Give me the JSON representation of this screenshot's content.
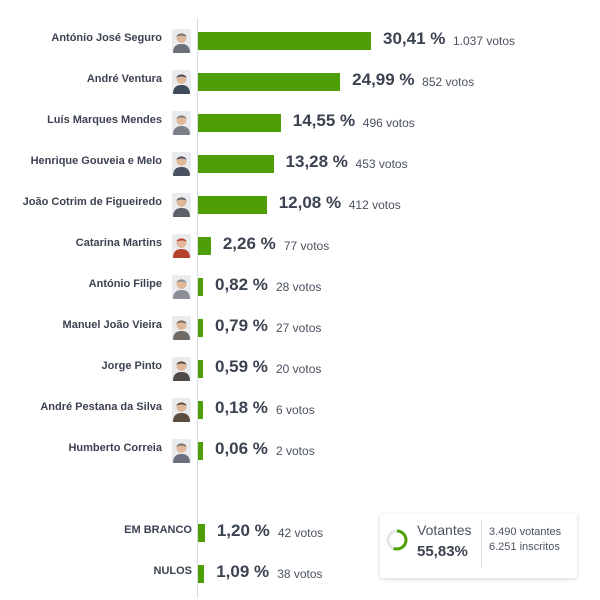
{
  "chart_data": {
    "type": "bar",
    "orientation": "horizontal",
    "xlim": [
      0,
      30.41
    ],
    "bar_color": "#4e9f06",
    "candidates": [
      {
        "name": "António José Seguro",
        "percent": 30.41,
        "percent_label": "30,41 %",
        "votes_label": "1.037 votos",
        "photo_color": "#6a6f78"
      },
      {
        "name": "André Ventura",
        "percent": 24.99,
        "percent_label": "24,99 %",
        "votes_label": "852 votos",
        "photo_color": "#3f4a5c"
      },
      {
        "name": "Luís Marques Mendes",
        "percent": 14.55,
        "percent_label": "14,55 %",
        "votes_label": "496 votos",
        "photo_color": "#7b7f88"
      },
      {
        "name": "Henrique Gouveia e Melo",
        "percent": 13.28,
        "percent_label": "13,28 %",
        "votes_label": "453 votos",
        "photo_color": "#4a5262"
      },
      {
        "name": "João Cotrim de Figueiredo",
        "percent": 12.08,
        "percent_label": "12,08 %",
        "votes_label": "412 votos",
        "photo_color": "#5c6068"
      },
      {
        "name": "Catarina Martins",
        "percent": 2.26,
        "percent_label": "2,26 %",
        "votes_label": "77 votos",
        "photo_color": "#b8402e"
      },
      {
        "name": "António Filipe",
        "percent": 0.82,
        "percent_label": "0,82 %",
        "votes_label": "28 votos",
        "photo_color": "#8a8e96"
      },
      {
        "name": "Manuel João Vieira",
        "percent": 0.79,
        "percent_label": "0,79 %",
        "votes_label": "27 votos",
        "photo_color": "#6f6a66"
      },
      {
        "name": "Jorge Pinto",
        "percent": 0.59,
        "percent_label": "0,59 %",
        "votes_label": "20 votos",
        "photo_color": "#4d4a48"
      },
      {
        "name": "André Pestana da Silva",
        "percent": 0.18,
        "percent_label": "0,18 %",
        "votes_label": "6 votos",
        "photo_color": "#5a4d40"
      },
      {
        "name": "Humberto Correia",
        "percent": 0.06,
        "percent_label": "0,06 %",
        "votes_label": "2 votos",
        "photo_color": "#6a7080"
      }
    ],
    "other": [
      {
        "name": "EM BRANCO",
        "percent": 1.2,
        "percent_label": "1,20 %",
        "votes_label": "42 votos"
      },
      {
        "name": "NULOS",
        "percent": 1.09,
        "percent_label": "1,09 %",
        "votes_label": "38 votos"
      }
    ]
  },
  "turnout": {
    "label": "Votantes",
    "percent": 55.83,
    "percent_label": "55,83%",
    "voters_label": "3.490 votantes",
    "registered_label": "6.251 inscritos",
    "ring_color": "#4e9f06",
    "ring_track_color": "#e3e6ea"
  }
}
